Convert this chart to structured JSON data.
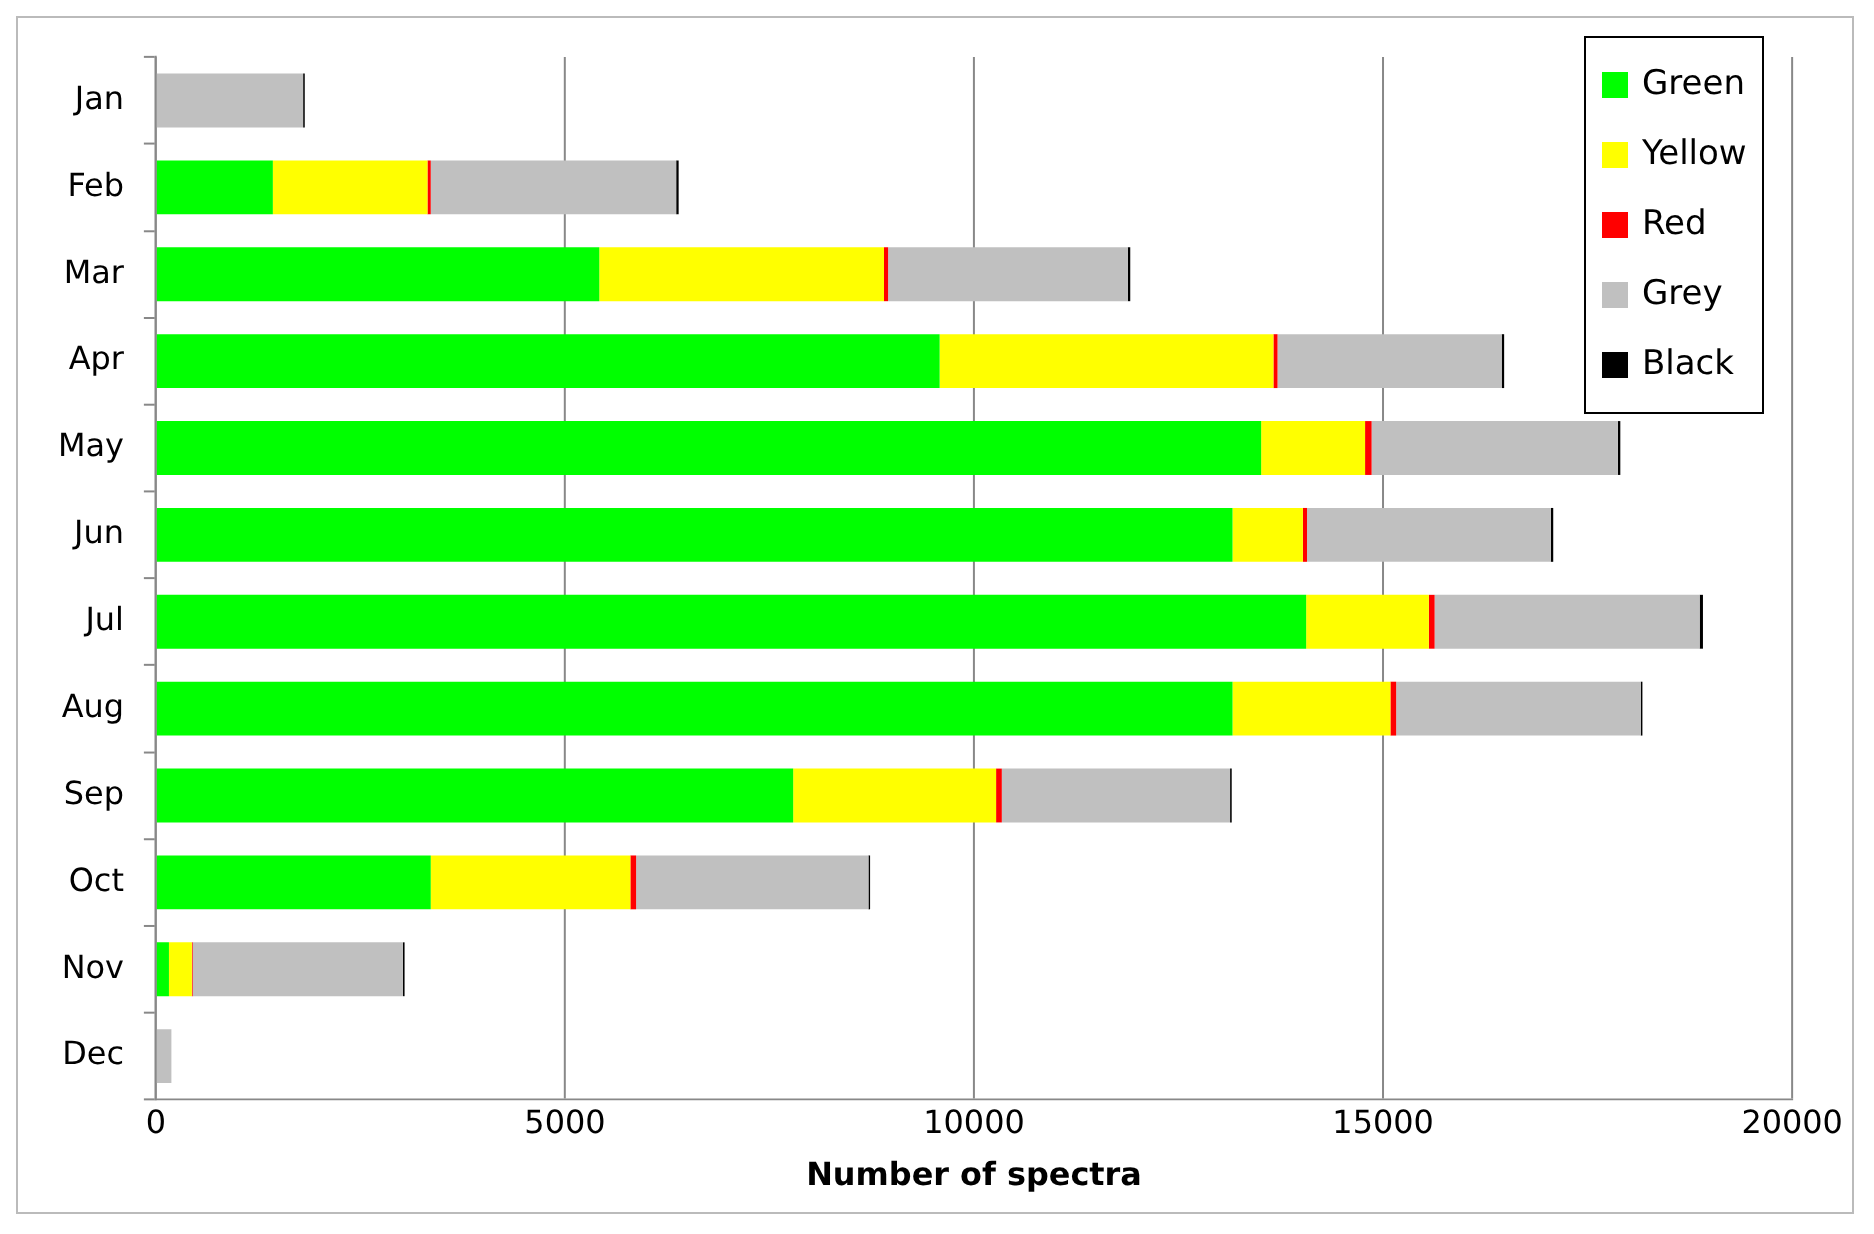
{
  "chart_data": {
    "type": "bar",
    "orientation": "horizontal",
    "stacked": true,
    "xlabel": "Number of spectra",
    "categories": [
      "Jan",
      "Feb",
      "Mar",
      "Apr",
      "May",
      "Jun",
      "Jul",
      "Aug",
      "Sep",
      "Oct",
      "Nov",
      "Dec"
    ],
    "series": [
      {
        "name": "Green",
        "color": "#00ff00",
        "values": [
          0,
          1430,
          5420,
          9580,
          13510,
          13160,
          14060,
          13160,
          7790,
          3360,
          160,
          0
        ]
      },
      {
        "name": "Yellow",
        "color": "#ffff00",
        "values": [
          0,
          1890,
          3480,
          4080,
          1270,
          860,
          1500,
          1930,
          2480,
          2440,
          280,
          0
        ]
      },
      {
        "name": "Red",
        "color": "#ff0000",
        "values": [
          0,
          40,
          50,
          50,
          80,
          50,
          70,
          70,
          70,
          70,
          10,
          0
        ]
      },
      {
        "name": "Grey",
        "color": "#c0c0c0",
        "values": [
          1800,
          3000,
          2930,
          2740,
          3010,
          2980,
          3240,
          2990,
          2790,
          2840,
          2570,
          190
        ]
      },
      {
        "name": "Black",
        "color": "#000000",
        "values": [
          20,
          30,
          30,
          30,
          30,
          30,
          40,
          20,
          20,
          20,
          20,
          0
        ]
      }
    ],
    "xlim": [
      0,
      20000
    ],
    "xticks": [
      0,
      5000,
      10000,
      15000,
      20000
    ],
    "grid": "x",
    "legend": "top right"
  }
}
